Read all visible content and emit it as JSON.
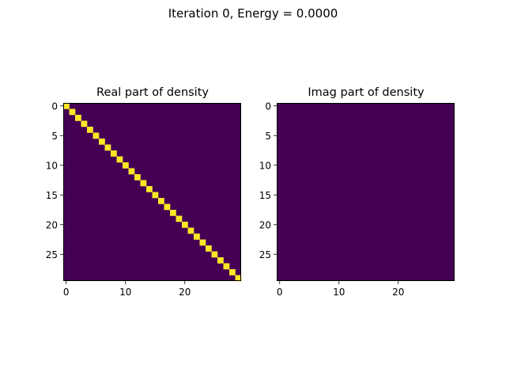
{
  "figure": {
    "suptitle": "Iteration 0, Energy =  0.0000"
  },
  "colors": {
    "low": "#440154",
    "high": "#fde725"
  },
  "chart_data": [
    {
      "type": "heatmap",
      "title": "Real part of density",
      "rows": 30,
      "cols": 30,
      "values_description": "identity",
      "value_range": [
        0,
        1
      ],
      "xticks": [
        0,
        10,
        20
      ],
      "yticks": [
        0,
        5,
        10,
        15,
        20,
        25
      ],
      "xlabel": "",
      "ylabel": ""
    },
    {
      "type": "heatmap",
      "title": "Imag part of density",
      "rows": 30,
      "cols": 30,
      "values_description": "zeros",
      "value_range": [
        0,
        1
      ],
      "xticks": [
        0,
        10,
        20
      ],
      "yticks": [
        0,
        5,
        10,
        15,
        20,
        25
      ],
      "xlabel": "",
      "ylabel": ""
    }
  ]
}
